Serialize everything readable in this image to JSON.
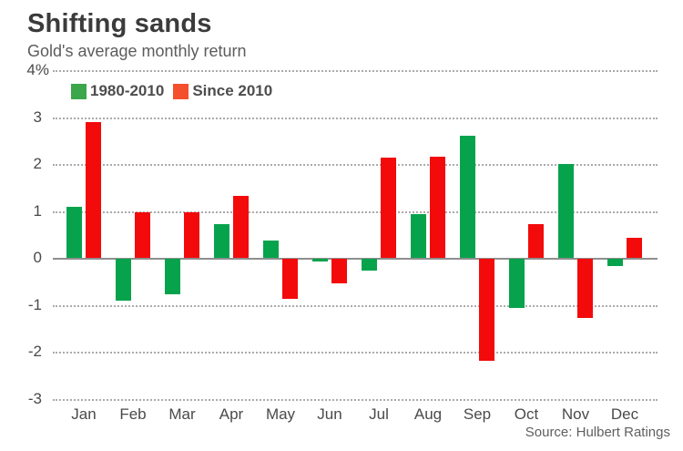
{
  "header": {
    "title": "Shifting sands",
    "subtitle": "Gold's average monthly return"
  },
  "legend": [
    {
      "label": "1980-2010",
      "color": "#3ca64a"
    },
    {
      "label": "Since 2010",
      "color": "#f4502e"
    }
  ],
  "source": "Source: Hulbert Ratings",
  "chart_data": {
    "type": "bar",
    "title": "Shifting sands",
    "subtitle": "Gold's average monthly return",
    "categories": [
      "Jan",
      "Feb",
      "Mar",
      "Apr",
      "May",
      "Jun",
      "Jul",
      "Aug",
      "Sep",
      "Oct",
      "Nov",
      "Dec"
    ],
    "series": [
      {
        "name": "1980-2010",
        "color": "#07a34c",
        "values": [
          1.1,
          -0.88,
          -0.75,
          0.73,
          0.37,
          -0.06,
          -0.24,
          0.93,
          2.6,
          -1.04,
          2.0,
          -0.15
        ]
      },
      {
        "name": "Since 2010",
        "color": "#f30a0a",
        "values": [
          2.9,
          0.97,
          0.98,
          1.33,
          -0.85,
          -0.52,
          2.13,
          2.15,
          -2.17,
          0.72,
          -1.26,
          0.44
        ]
      }
    ],
    "ylabel": "%",
    "ylim": [
      -3,
      4
    ],
    "ytick_values": [
      4,
      3,
      2,
      1,
      0,
      -1,
      -2,
      -3
    ],
    "ytick_labels": [
      "4%",
      "3",
      "2",
      "1",
      "0",
      "-1",
      "-2",
      "-3"
    ],
    "grid": "horizontal-dotted",
    "legend_position": "top-left-inside",
    "source": "Source: Hulbert Ratings"
  }
}
